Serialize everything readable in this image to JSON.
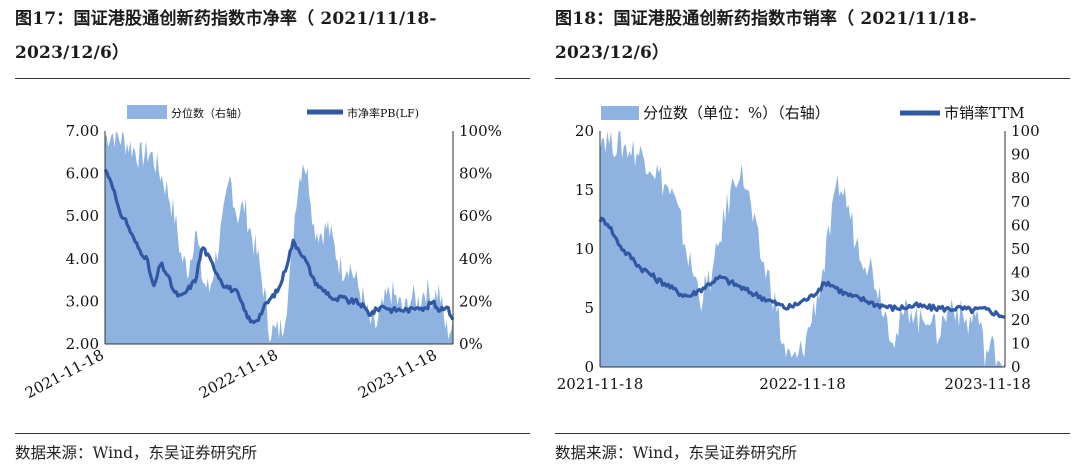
{
  "colors": {
    "area": "#8fb3e0",
    "line": "#3058a4",
    "rule": "#333333"
  },
  "left": {
    "title_line1": "图17：国证港股通创新药指数市净率（ 2021/11/18-",
    "title_line2": "2023/12/6）",
    "source": "数据来源：Wind，东吴证券研究所"
  },
  "right": {
    "title_line1": "图18：国证港股通创新药指数市销率（ 2021/11/18-",
    "title_line2": "2023/12/6）",
    "source": "数据来源：Wind，东吴证券研究所"
  },
  "chart_data": [
    {
      "type": "area",
      "title": "国证港股通创新药指数市净率（ 2021/11/18-2023/12/6）",
      "x_ticks": [
        "2021-11-18",
        "2022-11-18",
        "2023-11-18"
      ],
      "x_tick_pos": [
        0,
        0.5,
        0.957
      ],
      "y_left": {
        "ticks": [
          "7.00",
          "6.00",
          "5.00",
          "4.00",
          "3.00",
          "2.00"
        ],
        "lim": [
          2,
          7
        ]
      },
      "y_right": {
        "ticks": [
          "100%",
          "80%",
          "60%",
          "40%",
          "20%",
          "0%"
        ],
        "lim": [
          0,
          100
        ]
      },
      "legend": {
        "position": "top",
        "area": "分位数（右轴）",
        "line": "市净率PB(LF)"
      },
      "series": [
        {
          "name": "分位数（右轴）",
          "axis": "right",
          "kind": "area",
          "t": [
            0,
            0.02,
            0.05,
            0.08,
            0.1,
            0.13,
            0.16,
            0.18,
            0.2,
            0.22,
            0.24,
            0.26,
            0.28,
            0.3,
            0.32,
            0.34,
            0.36,
            0.38,
            0.4,
            0.42,
            0.44,
            0.46,
            0.47,
            0.49,
            0.51,
            0.53,
            0.55,
            0.57,
            0.59,
            0.6,
            0.62,
            0.64,
            0.66,
            0.68,
            0.7,
            0.72,
            0.74,
            0.76,
            0.78,
            0.8,
            0.82,
            0.84,
            0.86,
            0.88,
            0.9,
            0.92,
            0.94,
            0.96,
            0.98,
            1.0
          ],
          "v": [
            97,
            99,
            96,
            92,
            88,
            90,
            80,
            72,
            60,
            40,
            35,
            55,
            30,
            25,
            42,
            58,
            78,
            60,
            65,
            52,
            40,
            22,
            8,
            5,
            8,
            28,
            70,
            88,
            72,
            55,
            52,
            55,
            45,
            35,
            38,
            30,
            22,
            10,
            8,
            18,
            25,
            20,
            15,
            22,
            20,
            26,
            22,
            25,
            6,
            8
          ]
        },
        {
          "name": "市净率PB(LF)",
          "axis": "left",
          "kind": "line",
          "t": [
            0,
            0.02,
            0.04,
            0.06,
            0.08,
            0.1,
            0.12,
            0.14,
            0.16,
            0.18,
            0.2,
            0.22,
            0.24,
            0.26,
            0.28,
            0.3,
            0.32,
            0.34,
            0.36,
            0.38,
            0.4,
            0.42,
            0.44,
            0.46,
            0.48,
            0.5,
            0.52,
            0.54,
            0.56,
            0.58,
            0.6,
            0.62,
            0.64,
            0.66,
            0.68,
            0.7,
            0.72,
            0.74,
            0.76,
            0.78,
            0.8,
            0.82,
            0.84,
            0.86,
            0.88,
            0.9,
            0.92,
            0.94,
            0.96,
            0.98,
            1.0
          ],
          "v": [
            6.1,
            5.8,
            5.1,
            4.9,
            4.5,
            4.2,
            4.0,
            3.3,
            3.9,
            3.6,
            3.2,
            3.1,
            3.3,
            3.5,
            4.3,
            4.0,
            3.7,
            3.4,
            3.3,
            3.2,
            2.8,
            2.5,
            2.6,
            2.9,
            3.1,
            3.3,
            3.8,
            4.4,
            4.2,
            3.9,
            3.5,
            3.3,
            3.2,
            3.0,
            3.1,
            3.0,
            3.0,
            2.9,
            2.7,
            2.8,
            2.9,
            2.8,
            2.8,
            2.8,
            2.8,
            2.9,
            2.8,
            3.0,
            2.8,
            2.9,
            2.6
          ]
        }
      ]
    },
    {
      "type": "area",
      "title": "国证港股通创新药指数市销率（ 2021/11/18-2023/12/6）",
      "x_ticks": [
        "2021-11-18",
        "2022-11-18",
        "2023-11-18"
      ],
      "x_tick_pos": [
        0,
        0.5,
        0.957
      ],
      "y_left": {
        "ticks": [
          "20",
          "15",
          "10",
          "5",
          "0"
        ],
        "lim": [
          0,
          20
        ]
      },
      "y_right": {
        "ticks": [
          "100",
          "90",
          "80",
          "70",
          "60",
          "50",
          "40",
          "30",
          "20",
          "10",
          "0"
        ],
        "lim": [
          0,
          100
        ]
      },
      "legend": {
        "position": "top",
        "area": "分位数（单位：%）（右轴）",
        "line": "市销率TTM"
      },
      "series": [
        {
          "name": "分位数（单位：%）（右轴）",
          "axis": "right",
          "kind": "area",
          "t": [
            0,
            0.02,
            0.05,
            0.08,
            0.1,
            0.12,
            0.15,
            0.18,
            0.2,
            0.22,
            0.25,
            0.28,
            0.3,
            0.32,
            0.34,
            0.36,
            0.38,
            0.4,
            0.42,
            0.44,
            0.45,
            0.47,
            0.49,
            0.51,
            0.53,
            0.55,
            0.57,
            0.59,
            0.61,
            0.63,
            0.65,
            0.67,
            0.69,
            0.71,
            0.73,
            0.75,
            0.77,
            0.79,
            0.81,
            0.83,
            0.85,
            0.87,
            0.89,
            0.91,
            0.93,
            0.95,
            0.97,
            0.99,
            1.0
          ],
          "v": [
            98,
            97,
            94,
            92,
            90,
            88,
            80,
            72,
            60,
            45,
            30,
            40,
            58,
            72,
            84,
            78,
            60,
            45,
            36,
            22,
            10,
            2,
            4,
            12,
            26,
            40,
            60,
            78,
            70,
            55,
            48,
            42,
            32,
            20,
            12,
            22,
            26,
            18,
            24,
            14,
            20,
            28,
            22,
            18,
            24,
            6,
            8,
            4,
            2
          ]
        },
        {
          "name": "市销率TTM",
          "axis": "left",
          "kind": "line",
          "t": [
            0,
            0.02,
            0.04,
            0.06,
            0.08,
            0.1,
            0.12,
            0.14,
            0.16,
            0.18,
            0.2,
            0.22,
            0.24,
            0.26,
            0.28,
            0.3,
            0.32,
            0.34,
            0.36,
            0.38,
            0.4,
            0.42,
            0.44,
            0.46,
            0.48,
            0.5,
            0.52,
            0.54,
            0.56,
            0.58,
            0.6,
            0.62,
            0.64,
            0.66,
            0.68,
            0.7,
            0.72,
            0.74,
            0.76,
            0.78,
            0.8,
            0.82,
            0.84,
            0.86,
            0.88,
            0.9,
            0.92,
            0.94,
            0.96,
            0.98,
            1.0
          ],
          "v": [
            12.5,
            12.2,
            10.8,
            9.8,
            9.2,
            8.4,
            8.0,
            7.4,
            7.1,
            6.6,
            6.2,
            6.0,
            6.4,
            6.8,
            7.3,
            7.6,
            7.2,
            6.9,
            6.5,
            6.2,
            5.9,
            5.6,
            5.3,
            5.0,
            5.2,
            5.6,
            5.9,
            6.6,
            7.2,
            6.8,
            6.3,
            6.0,
            5.8,
            5.6,
            5.3,
            5.2,
            5.0,
            5.0,
            5.1,
            5.2,
            5.1,
            5.0,
            5.0,
            4.9,
            5.0,
            4.9,
            4.8,
            4.9,
            4.8,
            4.5,
            4.3
          ]
        }
      ]
    }
  ]
}
